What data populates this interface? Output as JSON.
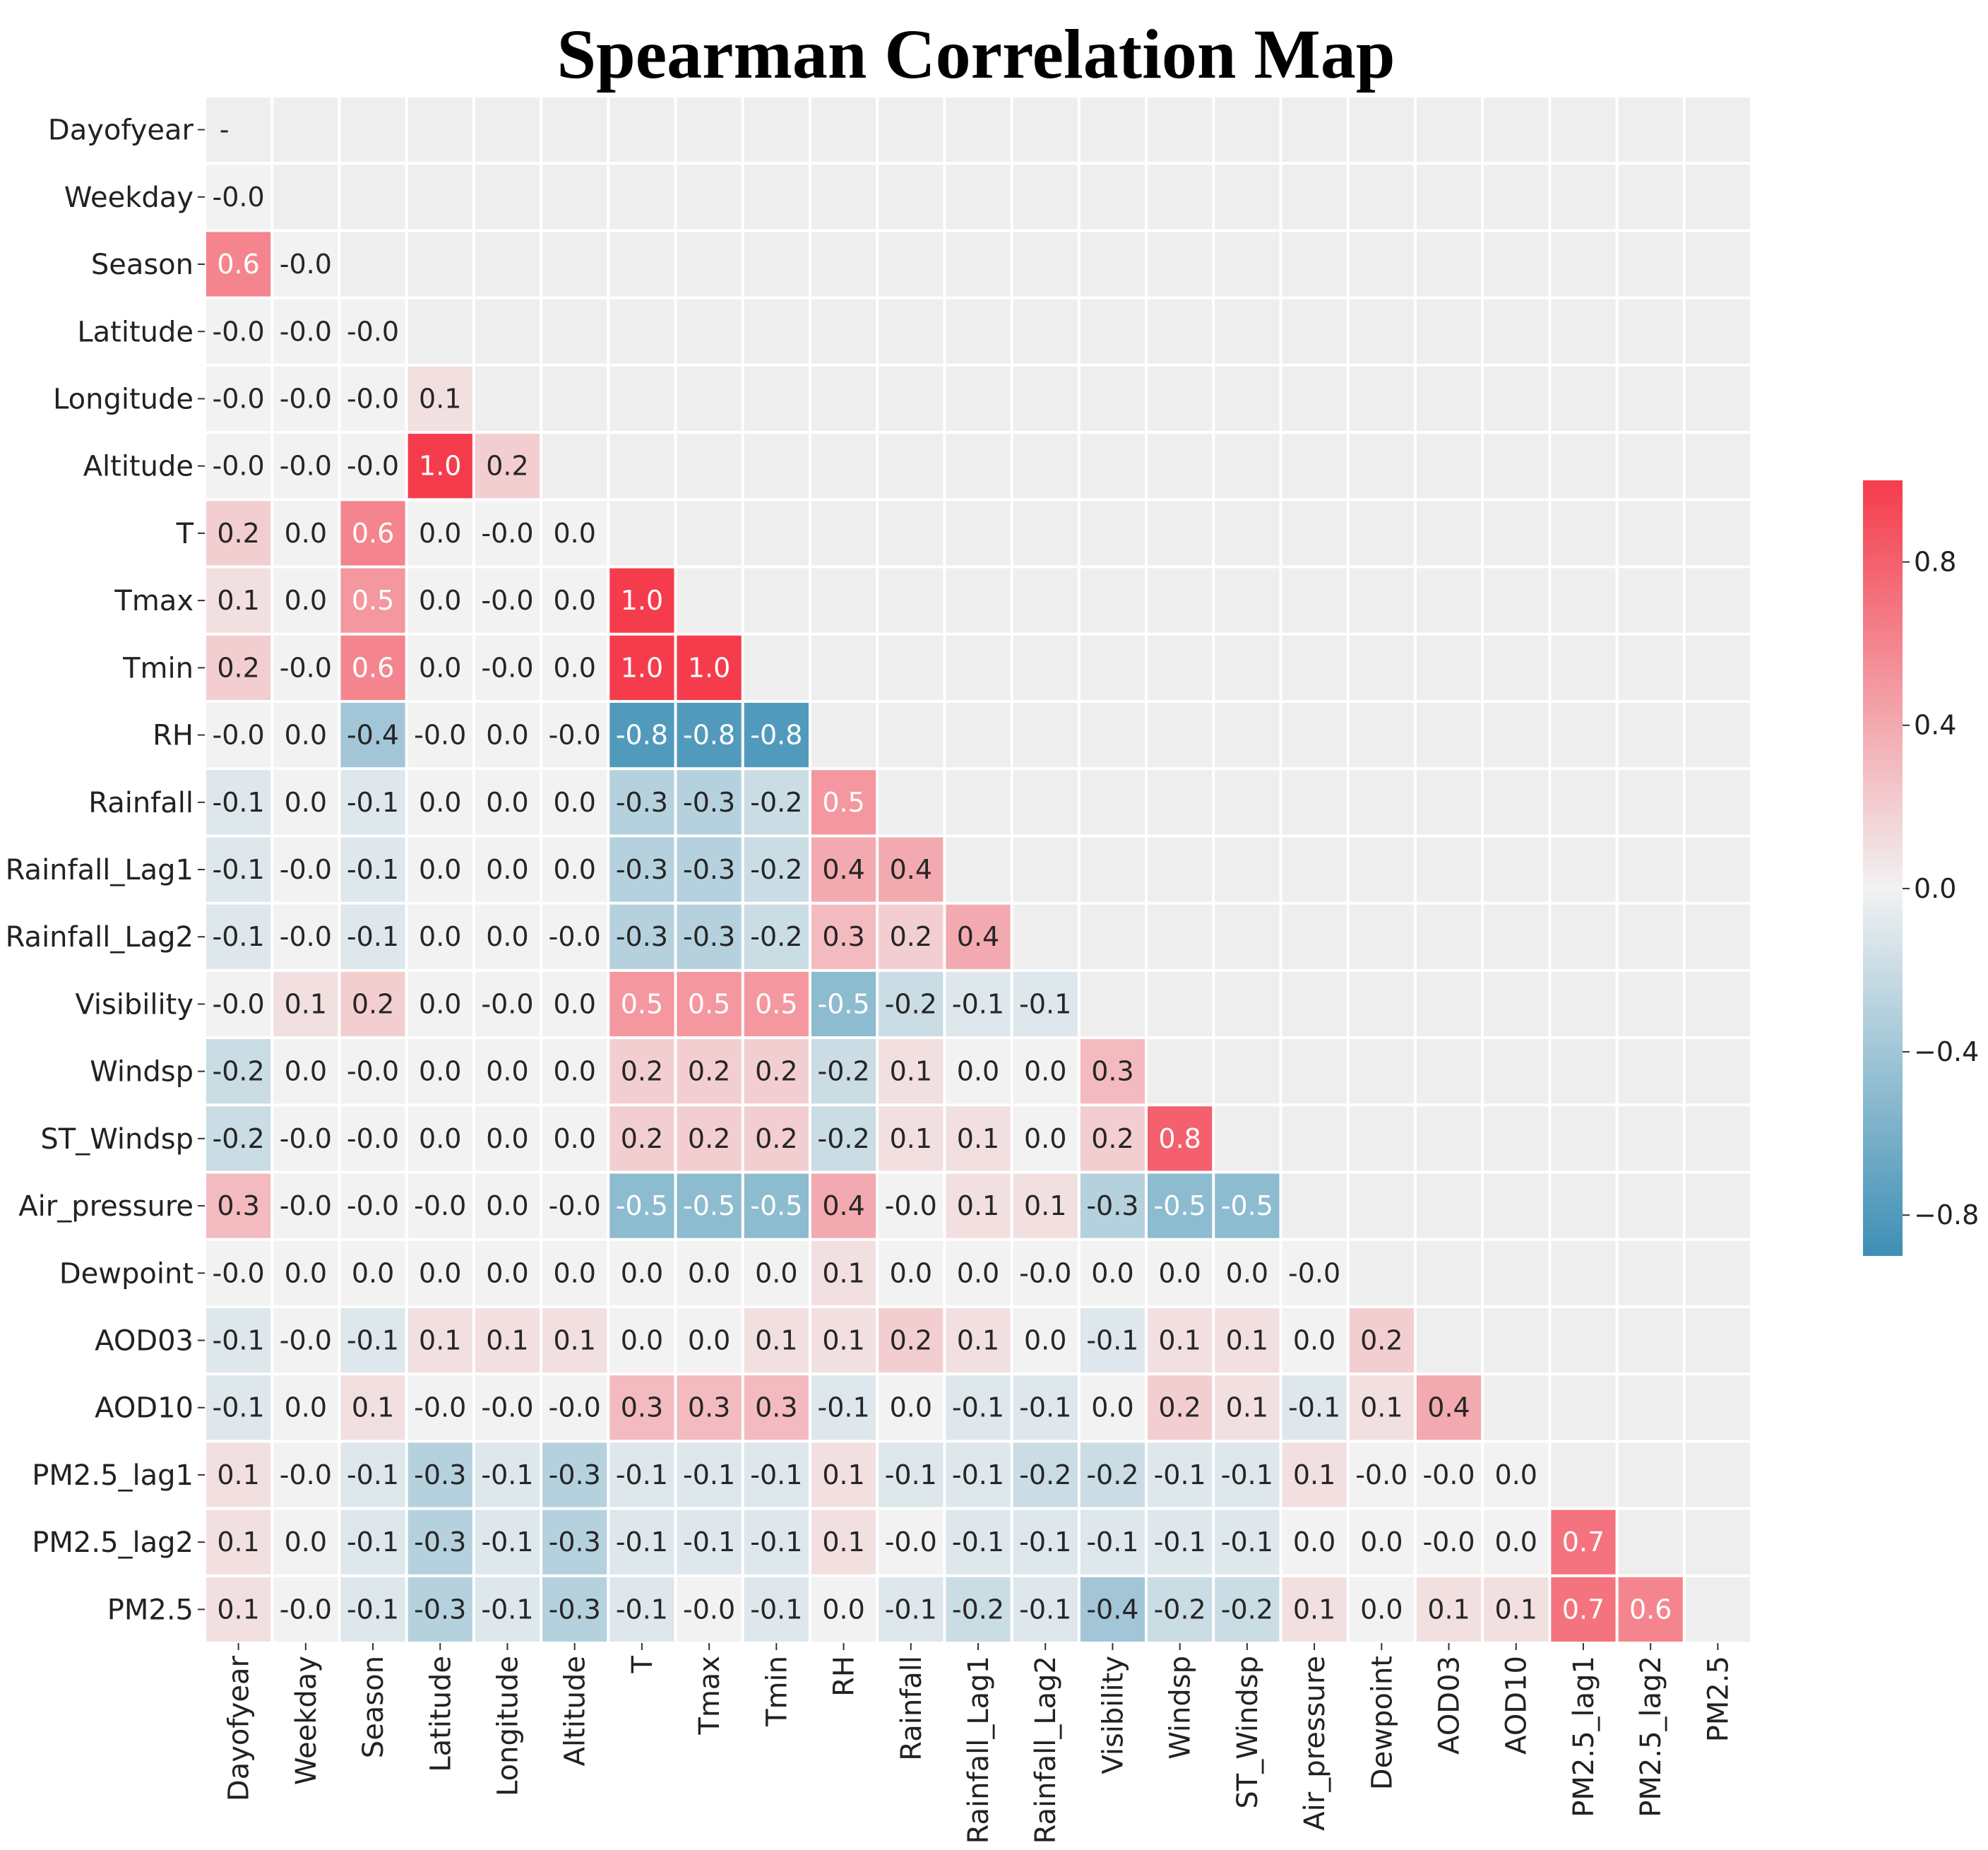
{
  "chart_data": {
    "type": "heatmap",
    "title": "Spearman Correlation Map",
    "variables": [
      "Dayofyear",
      "Weekday",
      "Season",
      "Latitude",
      "Longitude",
      "Altitude",
      "T",
      "Tmax",
      "Tmin",
      "RH",
      "Rainfall",
      "Rainfall_Lag1",
      "Rainfall_Lag2",
      "Visibility",
      "Windsp",
      "ST_Windsp",
      "Air_pressure",
      "Dewpoint",
      "AOD03",
      "AOD10",
      "PM2.5_lag1",
      "PM2.5_lag2",
      "PM2.5"
    ],
    "mask": "upper-triangle-including-diagonal",
    "cell_labels": [
      [],
      [
        "-0.0"
      ],
      [
        "0.6",
        "-0.0"
      ],
      [
        "-0.0",
        "-0.0",
        "-0.0"
      ],
      [
        "-0.0",
        "-0.0",
        "-0.0",
        "0.1"
      ],
      [
        "-0.0",
        "-0.0",
        "-0.0",
        "1.0",
        "0.2"
      ],
      [
        "0.2",
        "0.0",
        "0.6",
        "0.0",
        "-0.0",
        "0.0"
      ],
      [
        "0.1",
        "0.0",
        "0.5",
        "0.0",
        "-0.0",
        "0.0",
        "1.0"
      ],
      [
        "0.2",
        "-0.0",
        "0.6",
        "0.0",
        "-0.0",
        "0.0",
        "1.0",
        "1.0"
      ],
      [
        "-0.0",
        "0.0",
        "-0.4",
        "-0.0",
        "0.0",
        "-0.0",
        "-0.8",
        "-0.8",
        "-0.8"
      ],
      [
        "-0.1",
        "0.0",
        "-0.1",
        "0.0",
        "0.0",
        "0.0",
        "-0.3",
        "-0.3",
        "-0.2",
        "0.5"
      ],
      [
        "-0.1",
        "-0.0",
        "-0.1",
        "0.0",
        "0.0",
        "0.0",
        "-0.3",
        "-0.3",
        "-0.2",
        "0.4",
        "0.4"
      ],
      [
        "-0.1",
        "-0.0",
        "-0.1",
        "0.0",
        "0.0",
        "-0.0",
        "-0.3",
        "-0.3",
        "-0.2",
        "0.3",
        "0.2",
        "0.4"
      ],
      [
        "-0.0",
        "0.1",
        "0.2",
        "0.0",
        "-0.0",
        "0.0",
        "0.5",
        "0.5",
        "0.5",
        "-0.5",
        "-0.2",
        "-0.1",
        "-0.1"
      ],
      [
        "-0.2",
        "0.0",
        "-0.0",
        "0.0",
        "0.0",
        "0.0",
        "0.2",
        "0.2",
        "0.2",
        "-0.2",
        "0.1",
        "0.0",
        "0.0",
        "0.3"
      ],
      [
        "-0.2",
        "-0.0",
        "-0.0",
        "0.0",
        "0.0",
        "0.0",
        "0.2",
        "0.2",
        "0.2",
        "-0.2",
        "0.1",
        "0.1",
        "0.0",
        "0.2",
        "0.8"
      ],
      [
        "0.3",
        "-0.0",
        "-0.0",
        "-0.0",
        "0.0",
        "-0.0",
        "-0.5",
        "-0.5",
        "-0.5",
        "0.4",
        "-0.0",
        "0.1",
        "0.1",
        "-0.3",
        "-0.5",
        "-0.5"
      ],
      [
        "-0.0",
        "0.0",
        "0.0",
        "0.0",
        "0.0",
        "0.0",
        "0.0",
        "0.0",
        "0.0",
        "0.1",
        "0.0",
        "0.0",
        "-0.0",
        "0.0",
        "0.0",
        "0.0",
        "-0.0"
      ],
      [
        "-0.1",
        "-0.0",
        "-0.1",
        "0.1",
        "0.1",
        "0.1",
        "0.0",
        "0.0",
        "0.1",
        "0.1",
        "0.2",
        "0.1",
        "0.0",
        "-0.1",
        "0.1",
        "0.1",
        "0.0",
        "0.2"
      ],
      [
        "-0.1",
        "0.0",
        "0.1",
        "-0.0",
        "-0.0",
        "-0.0",
        "0.3",
        "0.3",
        "0.3",
        "-0.1",
        "0.0",
        "-0.1",
        "-0.1",
        "0.0",
        "0.2",
        "0.1",
        "-0.1",
        "0.1",
        "0.4"
      ],
      [
        "0.1",
        "-0.0",
        "-0.1",
        "-0.3",
        "-0.1",
        "-0.3",
        "-0.1",
        "-0.1",
        "-0.1",
        "0.1",
        "-0.1",
        "-0.1",
        "-0.2",
        "-0.2",
        "-0.1",
        "-0.1",
        "0.1",
        "-0.0",
        "-0.0",
        "0.0"
      ],
      [
        "0.1",
        "0.0",
        "-0.1",
        "-0.3",
        "-0.1",
        "-0.3",
        "-0.1",
        "-0.1",
        "-0.1",
        "0.1",
        "-0.0",
        "-0.1",
        "-0.1",
        "-0.1",
        "-0.1",
        "-0.1",
        "0.0",
        "0.0",
        "-0.0",
        "0.0",
        "0.7"
      ],
      [
        "0.1",
        "-0.0",
        "-0.1",
        "-0.3",
        "-0.1",
        "-0.3",
        "-0.1",
        "-0.0",
        "-0.1",
        "0.0",
        "-0.1",
        "-0.2",
        "-0.1",
        "-0.4",
        "-0.2",
        "-0.2",
        "0.1",
        "0.0",
        "0.1",
        "0.1",
        "0.7",
        "0.6"
      ]
    ],
    "diagonal_label": "-",
    "colorbar": {
      "range": [
        -0.9,
        1.0
      ],
      "ticks": [
        0.8,
        0.4,
        0.0,
        -0.4,
        -0.8
      ],
      "tick_labels": [
        "0.8",
        "0.4",
        "0.0",
        "−0.4",
        "−0.8"
      ],
      "colors": {
        "negative": "#3d8fb5",
        "neutral": "#f2f2f2",
        "positive": "#f53c4c"
      }
    },
    "colors": {
      "masked": "#eeeeee",
      "grid": "#ffffff",
      "light_text": "#ffffff",
      "dark_text": "#262626"
    }
  }
}
